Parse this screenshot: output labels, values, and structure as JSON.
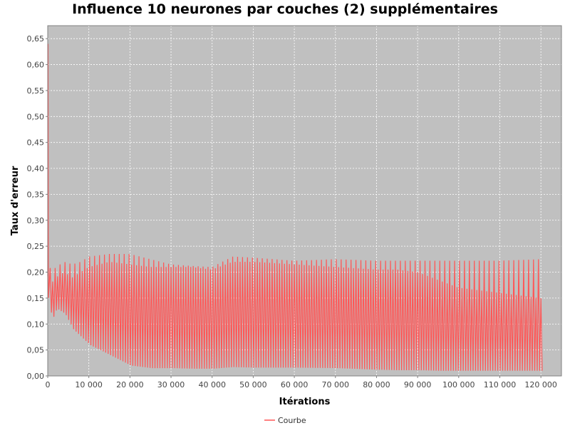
{
  "chart_data": {
    "type": "line",
    "title": "Influence 10 neurones par couches (2) supplémentaires",
    "xlabel": "Itérations",
    "ylabel": "Taux d'erreur",
    "xlim": [
      0,
      125000
    ],
    "ylim": [
      0,
      0.675
    ],
    "x_ticks": [
      0,
      10000,
      20000,
      30000,
      40000,
      50000,
      60000,
      70000,
      80000,
      90000,
      100000,
      110000,
      120000
    ],
    "x_tick_labels": [
      "0",
      "10 000",
      "20 000",
      "30 000",
      "40 000",
      "50 000",
      "60 000",
      "70 000",
      "80 000",
      "90 000",
      "100 000",
      "110 000",
      "120 000"
    ],
    "y_ticks": [
      0,
      0.05,
      0.1,
      0.15,
      0.2,
      0.25,
      0.3,
      0.35,
      0.4,
      0.45,
      0.5,
      0.55,
      0.6,
      0.65
    ],
    "y_tick_labels": [
      "0,00",
      "0,05",
      "0,10",
      "0,15",
      "0,20",
      "0,25",
      "0,30",
      "0,35",
      "0,40",
      "0,45",
      "0,50",
      "0,55",
      "0,60",
      "0,65"
    ],
    "grid": true,
    "legend_position": "bottom",
    "plot_background": "#c0c0c0",
    "series": [
      {
        "name": "Courbe",
        "color": "#ff5555",
        "x_end": 120000,
        "initial_peak": 0.64,
        "envelope_x": [
          0,
          1000,
          2000,
          4000,
          6000,
          8000,
          10000,
          15000,
          20000,
          25000,
          30000,
          35000,
          40000,
          45000,
          50000,
          60000,
          70000,
          80000,
          85000,
          90000,
          95000,
          100000,
          110000,
          120000
        ],
        "envelope_upper": [
          0.22,
          0.2,
          0.21,
          0.22,
          0.215,
          0.22,
          0.23,
          0.235,
          0.235,
          0.225,
          0.215,
          0.212,
          0.21,
          0.23,
          0.228,
          0.222,
          0.225,
          0.222,
          0.222,
          0.222,
          0.222,
          0.222,
          0.222,
          0.225
        ],
        "envelope_lower": [
          0.14,
          0.11,
          0.13,
          0.12,
          0.09,
          0.075,
          0.06,
          0.04,
          0.02,
          0.015,
          0.015,
          0.014,
          0.014,
          0.017,
          0.016,
          0.016,
          0.015,
          0.012,
          0.011,
          0.011,
          0.01,
          0.01,
          0.01,
          0.01
        ],
        "mid_upper": [
          0.19,
          0.18,
          0.19,
          0.2,
          0.19,
          0.2,
          0.21,
          0.22,
          0.215,
          0.21,
          0.21,
          0.21,
          0.205,
          0.22,
          0.22,
          0.215,
          0.21,
          0.205,
          0.205,
          0.2,
          0.185,
          0.17,
          0.16,
          0.15
        ]
      }
    ]
  }
}
